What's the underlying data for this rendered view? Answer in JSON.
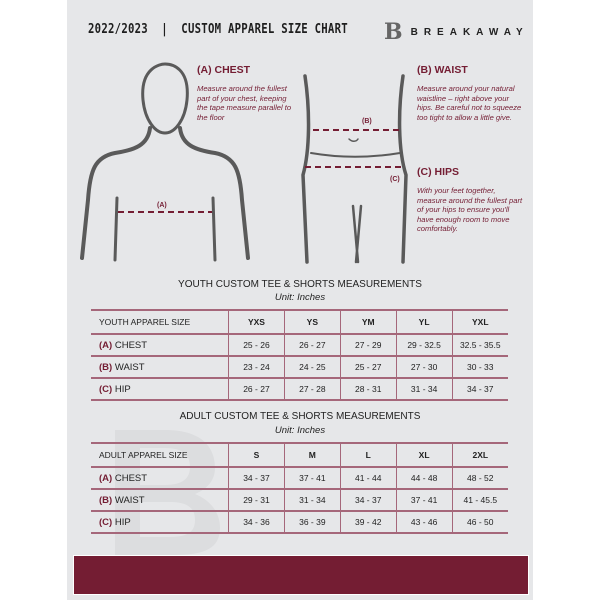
{
  "header": {
    "title": "2022/2023  |  CUSTOM APPAREL SIZE CHART",
    "brand": "BREAKAWAY",
    "brand_mark": "B"
  },
  "colors": {
    "accent": "#741d33",
    "panel": "#e6e7e9"
  },
  "measures": {
    "chest": {
      "title": "(A) CHEST",
      "marker": "(A)",
      "desc": "Measure around the fullest part of your chest, keeping the tape measure parallel to the floor"
    },
    "waist": {
      "title": "(B) WAIST",
      "marker": "(B)",
      "desc": "Measure around your natural waistline – right above your hips. Be careful not to squeeze too tight to allow a little give."
    },
    "hips": {
      "title": "(C) HIPS",
      "marker": "(C)",
      "desc": "With your feet together, measure around the fullest part of your hips to ensure you'll have enough room to move comfortably."
    }
  },
  "youth": {
    "title": "YOUTH CUSTOM TEE & SHORTS MEASUREMENTS",
    "unit": "Unit: Inches",
    "header": "YOUTH APPAREL SIZE",
    "sizes": [
      "YXS",
      "YS",
      "YM",
      "YL",
      "YXL"
    ],
    "rows": [
      {
        "code": "(A)",
        "name": "CHEST",
        "values": [
          "25 - 26",
          "26 - 27",
          "27 - 29",
          "29 - 32.5",
          "32.5 - 35.5"
        ]
      },
      {
        "code": "(B)",
        "name": "WAIST",
        "values": [
          "23 - 24",
          "24 - 25",
          "25 - 27",
          "27 - 30",
          "30 - 33"
        ]
      },
      {
        "code": "(C)",
        "name": "HIP",
        "values": [
          "26 - 27",
          "27 - 28",
          "28 - 31",
          "31 - 34",
          "34 - 37"
        ]
      }
    ]
  },
  "adult": {
    "title": "ADULT CUSTOM TEE & SHORTS MEASUREMENTS",
    "unit": "Unit: Inches",
    "header": "ADULT APPAREL SIZE",
    "sizes": [
      "S",
      "M",
      "L",
      "XL",
      "2XL"
    ],
    "rows": [
      {
        "code": "(A)",
        "name": "CHEST",
        "values": [
          "34 - 37",
          "37 - 41",
          "41 - 44",
          "44 - 48",
          "48 - 52"
        ]
      },
      {
        "code": "(B)",
        "name": "WAIST",
        "values": [
          "29 - 31",
          "31 - 34",
          "34 - 37",
          "37 - 41",
          "41 - 45.5"
        ]
      },
      {
        "code": "(C)",
        "name": "HIP",
        "values": [
          "34 - 36",
          "36 - 39",
          "39 - 42",
          "43 - 46",
          "46 - 50"
        ]
      }
    ]
  }
}
